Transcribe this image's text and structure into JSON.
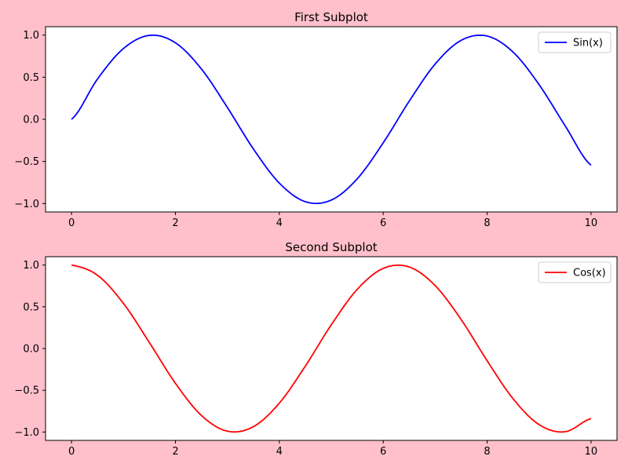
{
  "figure": {
    "background": "#ffc0cb"
  },
  "chart_data": [
    {
      "type": "line",
      "title": "First Subplot",
      "xlabel": "",
      "ylabel": "",
      "xlim": [
        -0.5,
        10.5
      ],
      "ylim": [
        -1.1,
        1.1
      ],
      "xticks": [
        0,
        2,
        4,
        6,
        8,
        10
      ],
      "xtick_labels": [
        "0",
        "2",
        "4",
        "6",
        "8",
        "10"
      ],
      "yticks": [
        1.0,
        0.5,
        0.0,
        -0.5,
        -1.0
      ],
      "ytick_labels": [
        "1.0",
        "0.5",
        "0.0",
        "−0.5",
        "−1.0"
      ],
      "grid": false,
      "legend": {
        "position": "upper right",
        "entries": [
          "Sin(x)"
        ]
      },
      "series": [
        {
          "name": "Sin(x)",
          "color": "#0000ff",
          "x": [
            0,
            0.5,
            1,
            1.5,
            2,
            2.5,
            3,
            3.5,
            4,
            4.5,
            5,
            5.5,
            6,
            6.5,
            7,
            7.5,
            8,
            8.5,
            9,
            9.5,
            10
          ],
          "y": [
            0,
            0.479,
            0.841,
            0.997,
            0.909,
            0.598,
            0.141,
            -0.351,
            -0.757,
            -0.978,
            -0.959,
            -0.706,
            -0.279,
            0.215,
            0.657,
            0.938,
            0.989,
            0.798,
            0.412,
            -0.075,
            -0.544
          ]
        }
      ]
    },
    {
      "type": "line",
      "title": "Second Subplot",
      "xlabel": "",
      "ylabel": "",
      "xlim": [
        -0.5,
        10.5
      ],
      "ylim": [
        -1.1,
        1.1
      ],
      "xticks": [
        0,
        2,
        4,
        6,
        8,
        10
      ],
      "xtick_labels": [
        "0",
        "2",
        "4",
        "6",
        "8",
        "10"
      ],
      "yticks": [
        1.0,
        0.5,
        0.0,
        -0.5,
        -1.0
      ],
      "ytick_labels": [
        "1.0",
        "0.5",
        "0.0",
        "−0.5",
        "−1.0"
      ],
      "grid": false,
      "legend": {
        "position": "upper right",
        "entries": [
          "Cos(x)"
        ]
      },
      "series": [
        {
          "name": "Cos(x)",
          "color": "#ff0000",
          "x": [
            0,
            0.5,
            1,
            1.5,
            2,
            2.5,
            3,
            3.5,
            4,
            4.5,
            5,
            5.5,
            6,
            6.5,
            7,
            7.5,
            8,
            8.5,
            9,
            9.5,
            10
          ],
          "y": [
            1,
            0.878,
            0.54,
            0.071,
            -0.416,
            -0.801,
            -0.99,
            -0.936,
            -0.654,
            -0.211,
            0.284,
            0.709,
            0.96,
            0.977,
            0.754,
            0.347,
            -0.146,
            -0.602,
            -0.911,
            -0.997,
            -0.839
          ]
        }
      ]
    }
  ]
}
